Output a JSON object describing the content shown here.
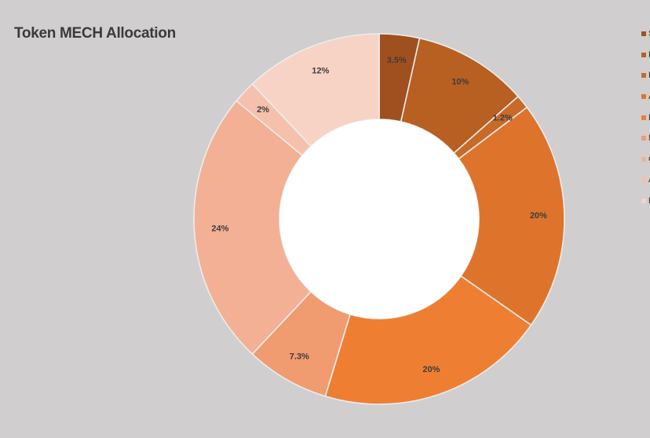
{
  "chart_data": {
    "type": "pie",
    "title": "Token MECH Allocation",
    "donut": true,
    "legend_position": "right",
    "slices": [
      {
        "legend_label": "S",
        "value": 3.5,
        "label": "3.5%",
        "color": "#a0501e"
      },
      {
        "legend_label": "F",
        "value": 10,
        "label": "10%",
        "color": "#b85f22"
      },
      {
        "legend_label": "F",
        "value": 1.2,
        "label": "1.2%",
        "color": "#c86a28"
      },
      {
        "legend_label": "A",
        "value": 20,
        "label": "20%",
        "color": "#de742c"
      },
      {
        "legend_label": "F",
        "value": 20,
        "label": "20%",
        "color": "#ee7f32"
      },
      {
        "legend_label": "M",
        "value": 7.3,
        "label": "7.3%",
        "color": "#f09b70"
      },
      {
        "legend_label": "C",
        "value": 24,
        "label": "24%",
        "color": "#f3b095"
      },
      {
        "legend_label": "A",
        "value": 2,
        "label": "2%",
        "color": "#f5c0ac"
      },
      {
        "legend_label": "L",
        "value": 12,
        "label": "12%",
        "color": "#f7d3c6"
      }
    ]
  }
}
